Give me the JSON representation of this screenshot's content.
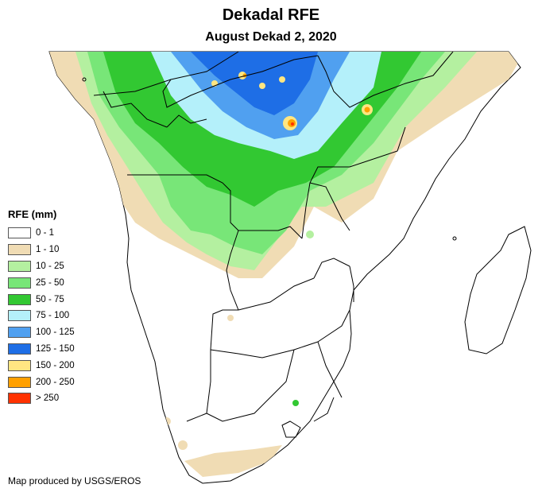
{
  "title": "Dekadal RFE",
  "subtitle": "August Dekad 2, 2020",
  "legend": {
    "title": "RFE (mm)",
    "items": [
      {
        "label": "0 - 1",
        "color": "#ffffff"
      },
      {
        "label": "1 - 10",
        "color": "#f0dcb4"
      },
      {
        "label": "10 - 25",
        "color": "#b4f0a0"
      },
      {
        "label": "25 - 50",
        "color": "#78e678"
      },
      {
        "label": "50 - 75",
        "color": "#32c832"
      },
      {
        "label": "75 - 100",
        "color": "#b4f0fa"
      },
      {
        "label": "100 - 125",
        "color": "#50a0f0"
      },
      {
        "label": "125 - 150",
        "color": "#1e6ee6"
      },
      {
        "label": "150 - 200",
        "color": "#ffe682"
      },
      {
        "label": "200 - 250",
        "color": "#ffa000"
      },
      {
        "label": "> 250",
        "color": "#ff3200"
      }
    ]
  },
  "credit": "Map produced by USGS/EROS"
}
